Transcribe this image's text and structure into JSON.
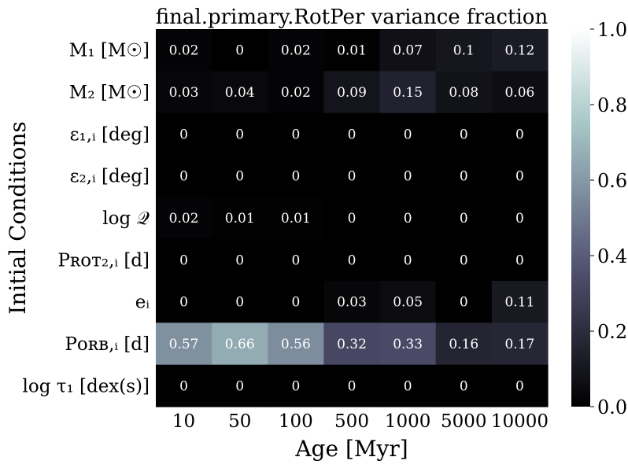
{
  "chart_data": {
    "type": "heatmap",
    "title": "final.primary.RotPer variance fraction",
    "xlabel": "Age [Myr]",
    "ylabel": "Initial Conditions",
    "x_categories": [
      "10",
      "50",
      "100",
      "500",
      "1000",
      "5000",
      "10000"
    ],
    "y_categories": [
      "M₁ [M☉]",
      "M₂ [M☉]",
      "ε₁,ᵢ [deg]",
      "ε₂,ᵢ [deg]",
      "log 𝒬",
      "Pʀᴏᴛ₂,ᵢ [d]",
      "eᵢ",
      "Pᴏʀʙ,ᵢ [d]",
      "log τ₁ [dex(s)]"
    ],
    "values": [
      [
        0.02,
        0,
        0.02,
        0.01,
        0.07,
        0.1,
        0.12
      ],
      [
        0.03,
        0.04,
        0.02,
        0.09,
        0.15,
        0.08,
        0.06
      ],
      [
        0,
        0,
        0,
        0,
        0,
        0,
        0
      ],
      [
        0,
        0,
        0,
        0,
        0,
        0,
        0
      ],
      [
        0.02,
        0.01,
        0.01,
        0,
        0,
        0,
        0
      ],
      [
        0,
        0,
        0,
        0,
        0,
        0,
        0
      ],
      [
        0,
        0,
        0,
        0.03,
        0.05,
        0,
        0.11
      ],
      [
        0.57,
        0.66,
        0.56,
        0.32,
        0.33,
        0.16,
        0.17
      ],
      [
        0,
        0,
        0,
        0,
        0,
        0,
        0
      ]
    ],
    "colorbar": {
      "range": [
        0.0,
        1.0
      ],
      "ticks": [
        "0.0",
        "0.2",
        "0.4",
        "0.6",
        "0.8",
        "1.0"
      ],
      "colormap": "bone"
    }
  }
}
